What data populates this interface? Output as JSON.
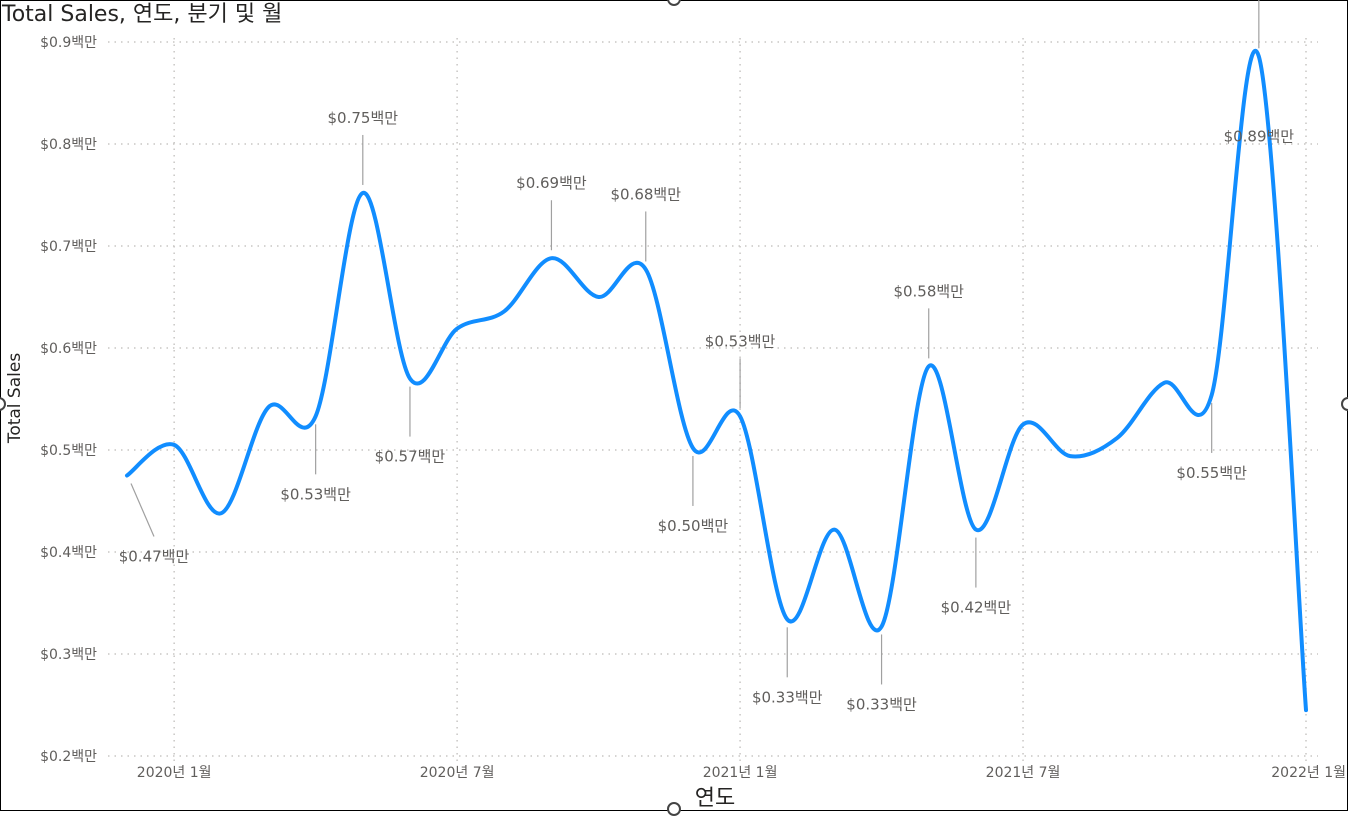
{
  "chart_data": {
    "type": "line",
    "title": "Total Sales, 연도, 분기 및 월",
    "xlabel": "연도",
    "ylabel": "Total Sales",
    "ylim": [
      0.2,
      0.9
    ],
    "y_ticks": [
      {
        "value": 0.9,
        "label": "$0.9백만"
      },
      {
        "value": 0.8,
        "label": "$0.8백만"
      },
      {
        "value": 0.7,
        "label": "$0.7백만"
      },
      {
        "value": 0.6,
        "label": "$0.6백만"
      },
      {
        "value": 0.5,
        "label": "$0.5백만"
      },
      {
        "value": 0.4,
        "label": "$0.4백만"
      },
      {
        "value": 0.3,
        "label": "$0.3백만"
      },
      {
        "value": 0.2,
        "label": "$0.2백만"
      }
    ],
    "x_ticks": [
      {
        "value": "2020-01",
        "label": "2020년 1월"
      },
      {
        "value": "2020-07",
        "label": "2020년 7월"
      },
      {
        "value": "2021-01",
        "label": "2021년 1월"
      },
      {
        "value": "2021-07",
        "label": "2021년 7월"
      },
      {
        "value": "2022-01",
        "label": "2022년 1월"
      }
    ],
    "grid": true,
    "line_color": "#118DFF",
    "series": [
      {
        "points": [
          {
            "x": "2019-12",
            "y": 0.475,
            "label": "$0.47백만"
          },
          {
            "x": "2020-01",
            "y": 0.505
          },
          {
            "x": "2020-02",
            "y": 0.438
          },
          {
            "x": "2020-03",
            "y": 0.542
          },
          {
            "x": "2020-04",
            "y": 0.533,
            "label": "$0.53백만"
          },
          {
            "x": "2020-05",
            "y": 0.752,
            "label": "$0.75백만"
          },
          {
            "x": "2020-06",
            "y": 0.57,
            "label": "$0.57백만"
          },
          {
            "x": "2020-07",
            "y": 0.619
          },
          {
            "x": "2020-08",
            "y": 0.636
          },
          {
            "x": "2020-09",
            "y": 0.688,
            "label": "$0.69백만"
          },
          {
            "x": "2020-10",
            "y": 0.65
          },
          {
            "x": "2020-11",
            "y": 0.677,
            "label": "$0.68백만"
          },
          {
            "x": "2020-12",
            "y": 0.502,
            "label": "$0.50백만"
          },
          {
            "x": "2021-01",
            "y": 0.533,
            "label": "$0.53백만"
          },
          {
            "x": "2021-02",
            "y": 0.334,
            "label": "$0.33백만"
          },
          {
            "x": "2021-03",
            "y": 0.422
          },
          {
            "x": "2021-04",
            "y": 0.327,
            "label": "$0.33백만"
          },
          {
            "x": "2021-05",
            "y": 0.582,
            "label": "$0.58백만"
          },
          {
            "x": "2021-06",
            "y": 0.422,
            "label": "$0.42백만"
          },
          {
            "x": "2021-07",
            "y": 0.525
          },
          {
            "x": "2021-08",
            "y": 0.494
          },
          {
            "x": "2021-09",
            "y": 0.512
          },
          {
            "x": "2021-10",
            "y": 0.566
          },
          {
            "x": "2021-11",
            "y": 0.554,
            "label": "$0.55백만"
          },
          {
            "x": "2021-12",
            "y": 0.886,
            "label": "$0.89백만"
          },
          {
            "x": "2022-01",
            "y": 0.245
          }
        ]
      }
    ]
  }
}
